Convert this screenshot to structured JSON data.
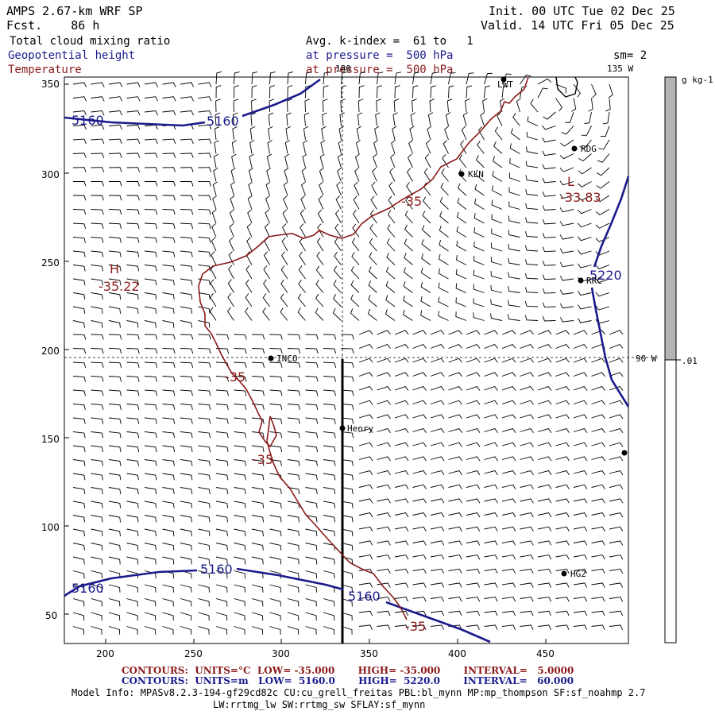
{
  "header": {
    "model": "AMPS 2.67-km WRF SP",
    "forecast": "Fcst.    86 h",
    "init": "Init. 00 UTC Tue 02 Dec 25",
    "valid": "Valid. 14 UTC Fri 05 Dec 25",
    "field_cloud": "Total cloud mixing ratio",
    "field_height": "Geopotential height",
    "field_temp": "Temperature",
    "avg_k": "Avg. k-index =  61 to   1",
    "pressure_height": "at pressure =  500 hPa",
    "pressure_temp": "at pressure =  500 hPa",
    "smoothing": "sm= 2"
  },
  "map": {
    "lon_labels": {
      "top": "180",
      "right_upper": "135 W",
      "right_mid": "90 W"
    },
    "x_ticks": [
      "200",
      "250",
      "300",
      "350",
      "400",
      "450"
    ],
    "y_ticks": [
      "350",
      "300",
      "250",
      "200",
      "150",
      "100",
      "50"
    ],
    "stations": [
      "LWT",
      "RDG",
      "KLN",
      "RRC",
      "INCO",
      "Henry",
      "HG2"
    ],
    "height_labels": [
      "5160",
      "5160",
      "5160",
      "5160",
      "5160",
      "5220"
    ],
    "temp_labels": [
      "-35",
      "-35",
      "-35",
      "-35"
    ],
    "high": {
      "letter": "H",
      "value": "-35.22"
    },
    "low": {
      "letter": "L",
      "value": "-33.83"
    }
  },
  "colorbar": {
    "unit": "g kg-1",
    "level": ".01"
  },
  "footer": {
    "temp_contours": "CONTOURS:  UNITS=°C  LOW= -35.000       HIGH= -35.000       INTERVAL=   5.0000",
    "height_contours": "CONTOURS:  UNITS=m   LOW=  5160.0       HIGH=  5220.0       INTERVAL=   60.000",
    "model_info": "Model Info: MPASv8.2.3-194-gf29cd82c CU:cu_grell_freitas PBL:bl_mynn MP:mp_thompson SF:sf_noahmp 2.7",
    "model_info2": "LW:rrtmg_lw SW:rrtmg_sw SFLAY:sf_mynn"
  },
  "colors": {
    "height": "#1a1a8c",
    "temperature": "#8b1a1a",
    "colorbar_fill": "#b4b4b4"
  }
}
